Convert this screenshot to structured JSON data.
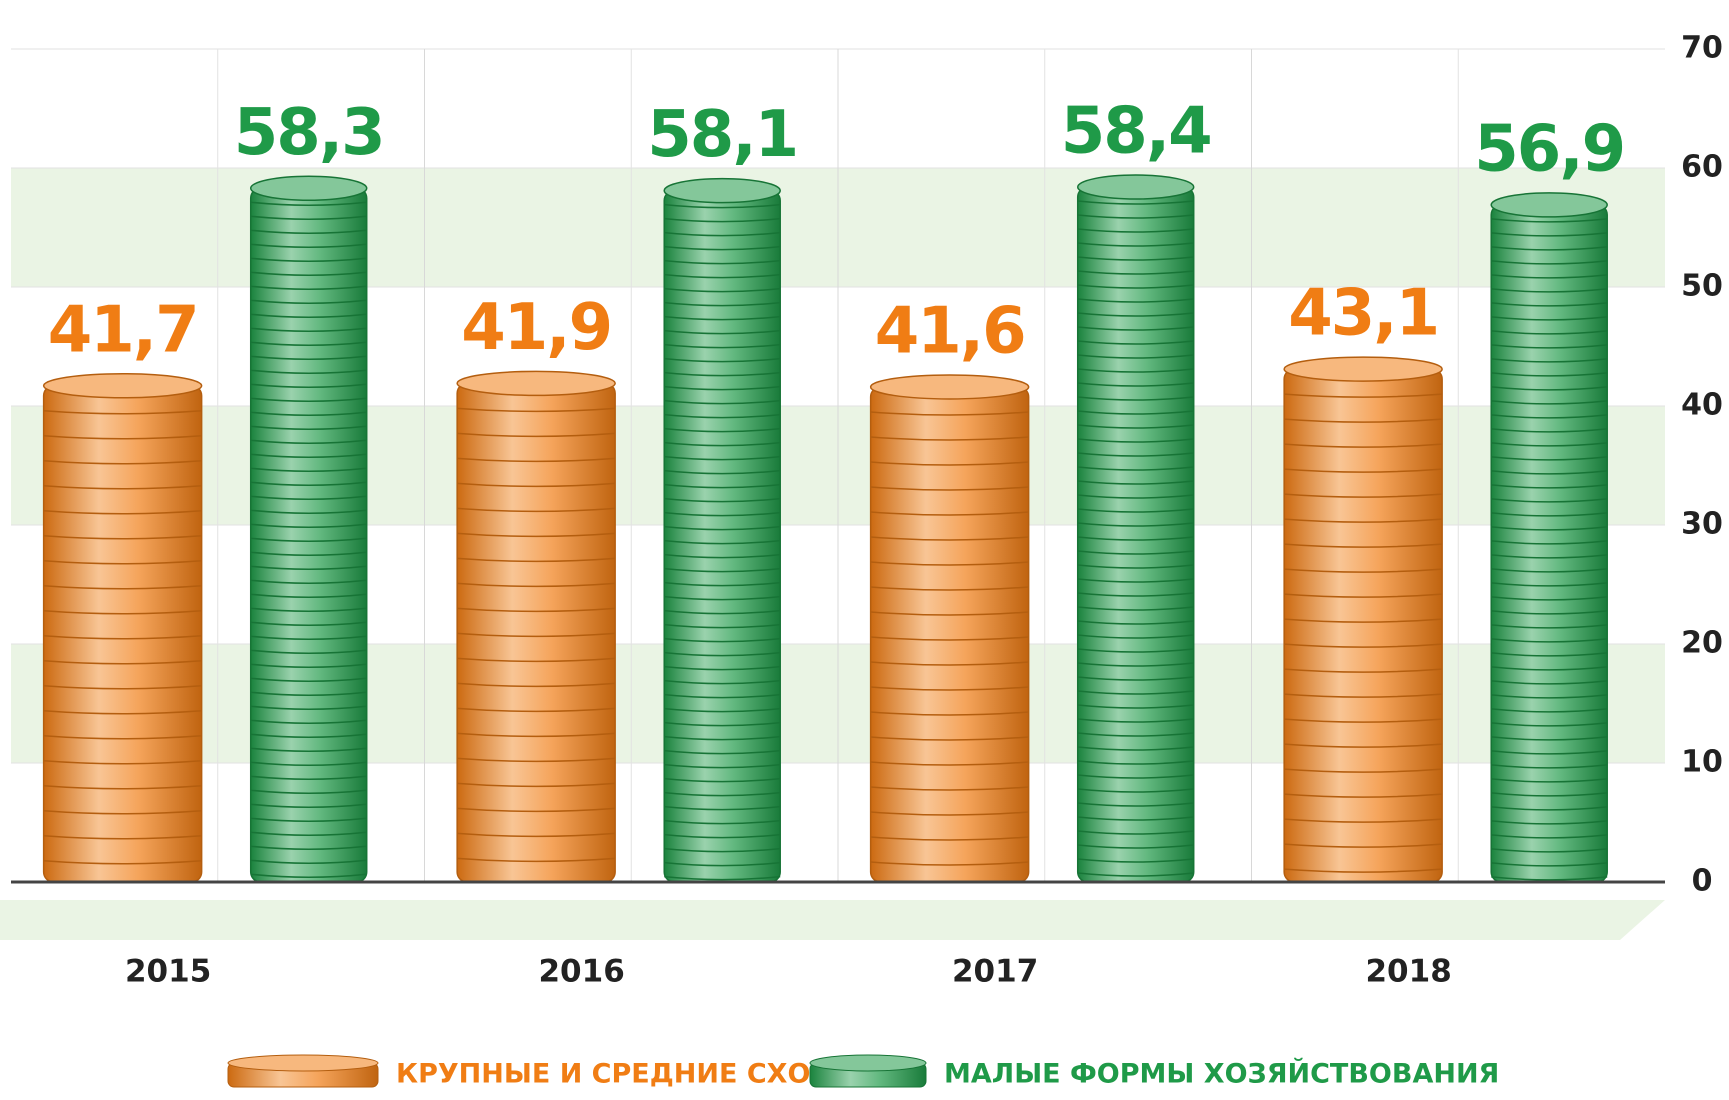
{
  "chart_data": {
    "type": "bar",
    "categories": [
      "2015",
      "2016",
      "2017",
      "2018"
    ],
    "series": [
      {
        "name": "КРУПНЫЕ И СРЕДНИЕ СХО",
        "color": "#f07d14",
        "values": [
          41.7,
          41.9,
          41.6,
          43.1
        ],
        "value_labels": [
          "41,7",
          "41,9",
          "41,6",
          "43,1"
        ]
      },
      {
        "name": "МАЛЫЕ ФОРМЫ ХОЗЯЙСТВОВАНИЯ",
        "color": "#1f9a48",
        "values": [
          58.3,
          58.1,
          58.4,
          56.9
        ],
        "value_labels": [
          "58,3",
          "58,1",
          "58,4",
          "56,9"
        ]
      }
    ],
    "ylim": [
      0,
      70
    ],
    "yticks": [
      0,
      10,
      20,
      30,
      40,
      50,
      60,
      70
    ]
  }
}
